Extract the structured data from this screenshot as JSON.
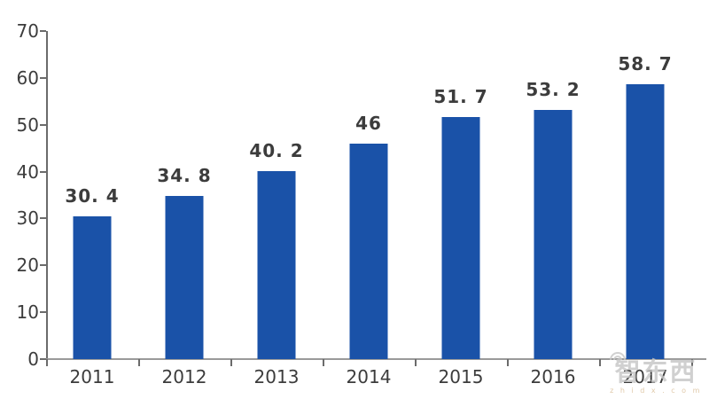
{
  "chart_data": {
    "type": "bar",
    "title": "",
    "xlabel": "",
    "ylabel": "",
    "categories": [
      "2011",
      "2012",
      "2013",
      "2014",
      "2015",
      "2016",
      "2017"
    ],
    "values": [
      30.4,
      34.8,
      40.2,
      46,
      51.7,
      53.2,
      58.7
    ],
    "value_labels": [
      "30. 4",
      "34. 8",
      "40. 2",
      "46",
      "51. 7",
      "53. 2",
      "58. 7"
    ],
    "ylim": [
      0,
      70
    ],
    "yticks": [
      0,
      10,
      20,
      30,
      40,
      50,
      60,
      70
    ],
    "grid": false,
    "legend": "none",
    "bar_color": "#1A52A8",
    "text_color": "#3C3C3C",
    "axis_color": "#6B6B6B",
    "baseline_color": "#9A9A9A"
  },
  "watermark": {
    "logo_text": "智东西",
    "sub_text": "z h i d x . c o m",
    "logo_color": "#C6C6C6",
    "sub_color": "#D9BD96"
  }
}
